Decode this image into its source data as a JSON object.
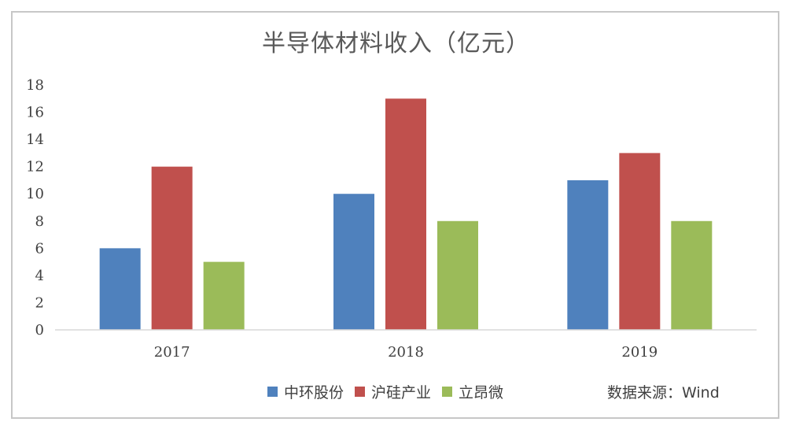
{
  "chart_data": {
    "type": "bar",
    "title": "半导体材料收入（亿元）",
    "categories": [
      "2017",
      "2018",
      "2019"
    ],
    "series": [
      {
        "name": "中环股份",
        "values": [
          6,
          10,
          11
        ],
        "color": "#4f81bd"
      },
      {
        "name": "沪硅产业",
        "values": [
          12,
          17,
          13
        ],
        "color": "#c0504d"
      },
      {
        "name": "立昂微",
        "values": [
          5,
          8,
          8
        ],
        "color": "#9bbb59"
      }
    ],
    "ylim": [
      0,
      18
    ],
    "yticks": [
      0,
      2,
      4,
      6,
      8,
      10,
      12,
      14,
      16,
      18
    ],
    "grid": false,
    "legend_position": "bottom"
  },
  "source_text": "数据来源：Wind"
}
